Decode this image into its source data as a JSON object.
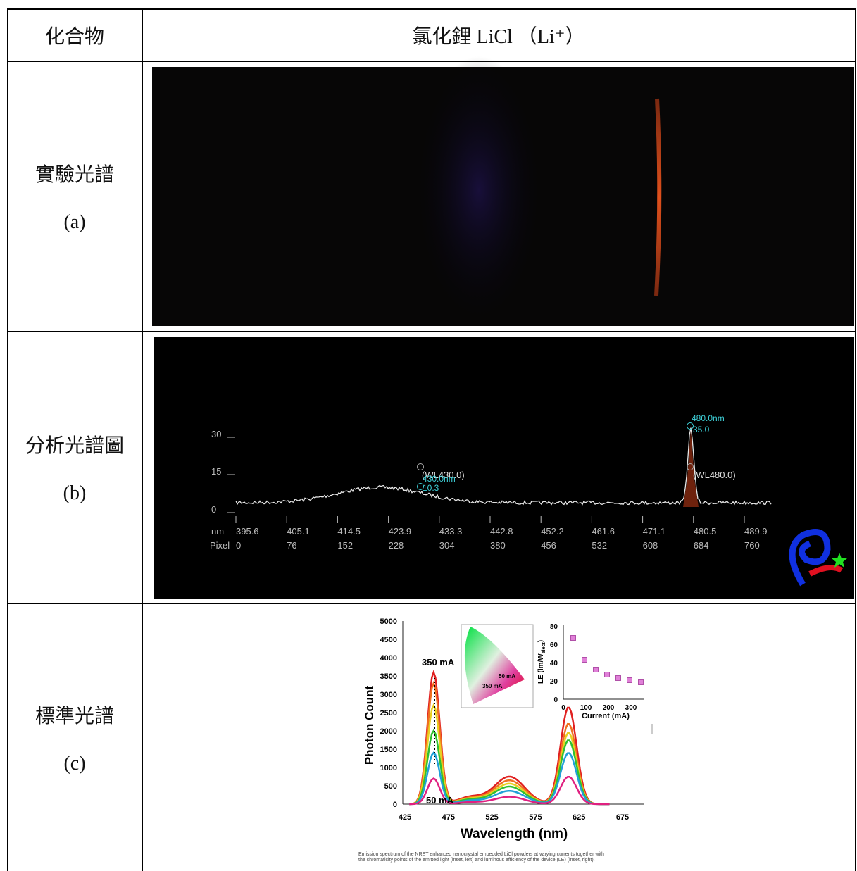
{
  "table": {
    "header": [
      "化合物",
      "氯化鋰 LiCl （Li⁺）"
    ],
    "rows": [
      {
        "label": "實驗光譜",
        "tag": "(a)"
      },
      {
        "label": "分析光譜圖",
        "tag": "(b)"
      },
      {
        "label": "標準光譜",
        "tag": "(c)"
      }
    ]
  },
  "spectrum_b": {
    "y_labels": [
      "30",
      "15",
      "0"
    ],
    "nm_label": "nm",
    "nm": [
      "395.6",
      "405.1",
      "414.5",
      "423.9",
      "433.3",
      "442.8",
      "452.2",
      "461.6",
      "471.1",
      "480.5",
      "489.9"
    ],
    "pixel_label": "Pixel",
    "pixels": [
      "0",
      "76",
      "152",
      "228",
      "304",
      "380",
      "456",
      "532",
      "608",
      "684",
      "760"
    ],
    "annotations": [
      "480.0nm",
      "35.0",
      "(WL480.0)",
      "(WL430.0)",
      "430.0nm",
      "10.3"
    ]
  },
  "figure_c": {
    "y_title": "Photon Count",
    "x_title": "Wavelength (nm)",
    "yticks": [
      "0",
      "500",
      "1000",
      "1500",
      "2000",
      "2500",
      "3000",
      "3500",
      "4000",
      "4500",
      "5000"
    ],
    "xticks": [
      "425",
      "475",
      "525",
      "575",
      "625",
      "675"
    ],
    "labels": [
      "350 mA",
      "50 mA"
    ],
    "inset_left_labels": [
      "50 mA",
      "350 mA"
    ],
    "inset_right": {
      "y_title": [
        "LE (lm/W",
        "elect",
        ")"
      ],
      "yticks": [
        "0",
        "20",
        "40",
        "60",
        "80"
      ],
      "xticks": [
        "0",
        "100",
        "200",
        "300"
      ],
      "x_title": "Current (mA)"
    },
    "caption": [
      "Emission spectrum of the NRET enhanced nanocrystal embedded LiCl powders at varying currents together with",
      "the chromaticity points of the emitted light (inset, left) and luminous efficiency of the device (LE) (inset, right)."
    ]
  }
}
